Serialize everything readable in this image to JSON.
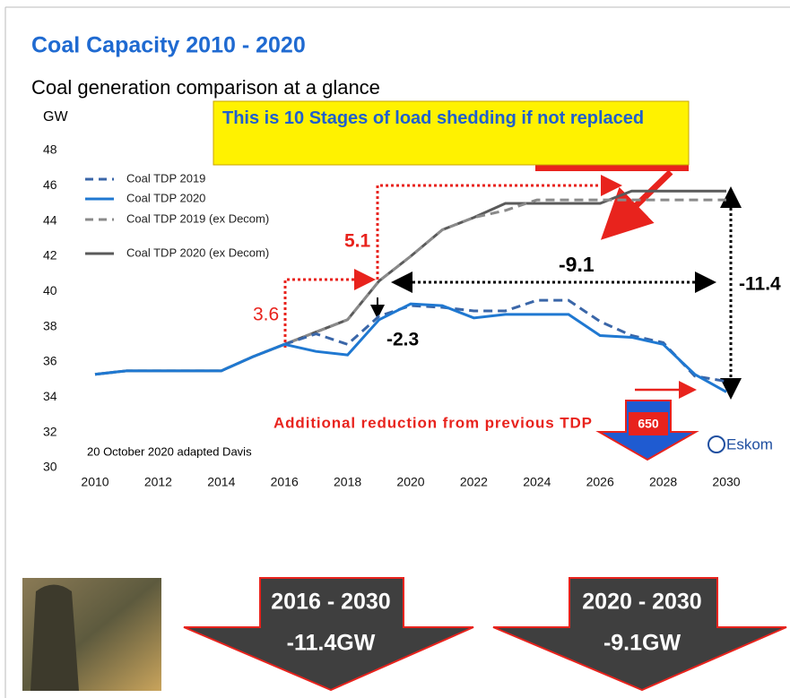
{
  "chart_data": {
    "type": "line",
    "title": "Coal Capacity 2010 - 2020",
    "subtitle": "Coal generation comparison at a glance",
    "y_label": "GW",
    "x": [
      2010,
      2011,
      2012,
      2013,
      2014,
      2015,
      2016,
      2017,
      2018,
      2019,
      2020,
      2021,
      2022,
      2023,
      2024,
      2025,
      2026,
      2027,
      2028,
      2029,
      2030
    ],
    "xlim": [
      2010,
      2030
    ],
    "xticks": [
      2010,
      2012,
      2014,
      2016,
      2018,
      2020,
      2022,
      2024,
      2026,
      2028,
      2030
    ],
    "ylim": [
      30,
      48
    ],
    "yticks": [
      30,
      32,
      34,
      36,
      38,
      40,
      42,
      44,
      46,
      48
    ],
    "series": [
      {
        "name": "Coal TDP 2019",
        "color": "#3a66a8",
        "dash": true,
        "values": [
          null,
          null,
          null,
          null,
          null,
          null,
          37.0,
          37.6,
          37.0,
          38.6,
          39.2,
          39.1,
          38.9,
          38.9,
          39.5,
          39.5,
          38.3,
          37.5,
          37.1,
          35.2,
          34.9
        ]
      },
      {
        "name": "Coal TDP 2020",
        "color": "#1f78d1",
        "dash": false,
        "values": [
          35.3,
          35.5,
          35.5,
          35.5,
          35.5,
          36.3,
          37.0,
          36.6,
          36.4,
          38.4,
          39.3,
          39.2,
          38.5,
          38.7,
          38.7,
          38.7,
          37.5,
          37.4,
          37.0,
          35.3,
          34.3
        ]
      },
      {
        "name": "Coal TDP 2019 (ex Decom)",
        "color": "#8a8a8a",
        "dash": true,
        "values": [
          35.3,
          35.5,
          35.5,
          35.5,
          35.5,
          36.3,
          37.0,
          37.7,
          38.4,
          40.6,
          42.0,
          43.5,
          44.2,
          44.6,
          45.2,
          45.2,
          45.2,
          45.2,
          45.2,
          45.2,
          45.2
        ]
      },
      {
        "name": "Coal TDP 2020 (ex Decom)",
        "color": "#5a5a5a",
        "dash": false,
        "values": [
          35.3,
          35.5,
          35.5,
          35.5,
          35.5,
          36.3,
          37.0,
          37.7,
          38.4,
          40.6,
          42.0,
          43.5,
          44.2,
          45.0,
          45.0,
          45.0,
          45.0,
          45.7,
          45.7,
          45.7,
          45.7
        ]
      }
    ],
    "annotations": {
      "callout": "This is 10 Stages of load shedding if not replaced",
      "step_a": "3.6",
      "step_b": "5.1",
      "gap_2019": "-2.3",
      "gap_2020_2030": "-9.1",
      "gap_2016_2030": "-11.4",
      "reduction": "Additional reduction from previous TDP",
      "reduction_value": "650",
      "source": "20 October 2020 adapted Davis",
      "logo": "Eskom"
    }
  },
  "summary_arrows": [
    {
      "period": "2016 - 2030",
      "change": "-11.4GW"
    },
    {
      "period": "2020 - 2030",
      "change": "-9.1GW"
    }
  ]
}
